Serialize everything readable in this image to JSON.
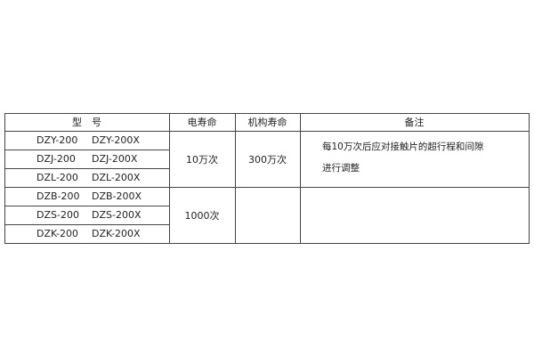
{
  "header": {
    "model": "型　号",
    "electrical_life": "电寿命",
    "mechanical_life": "机构寿命",
    "remarks": "备注"
  },
  "rows": [
    {
      "a": "DZY-200",
      "b": "DZY-200X"
    },
    {
      "a": "DZJ-200",
      "b": "DZJ-200X"
    },
    {
      "a": "DZL-200",
      "b": "DZL-200X"
    },
    {
      "a": "DZB-200",
      "b": "DZB-200X"
    },
    {
      "a": "DZS-200",
      "b": "DZS-200X"
    },
    {
      "a": "DZK-200",
      "b": "DZK-200X"
    }
  ],
  "groups": [
    {
      "electrical_life": "10万次",
      "mechanical_life": "300万次",
      "remarks_line1": "每10万次后应对接触片的超行程和间隙",
      "remarks_line2": "进行调整"
    },
    {
      "electrical_life": "1000次",
      "mechanical_life": "",
      "remarks_line1": "",
      "remarks_line2": ""
    }
  ]
}
